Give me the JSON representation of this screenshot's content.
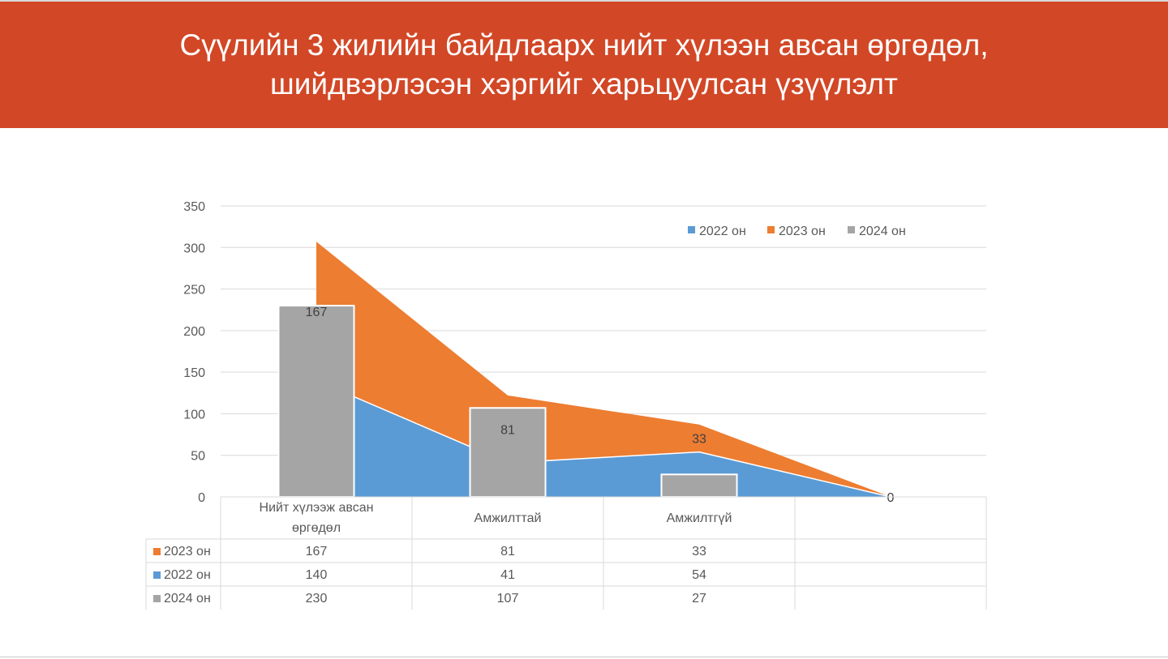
{
  "title": {
    "line1": "Сүүлийн 3 жилийн байдлаарх нийт хүлээн авсан өргөдөл,",
    "line2": "шийдвэрлэсэн хэргийг харьцуулсан үзүүлэлт"
  },
  "chart_data": {
    "type": "area+bar",
    "categories": [
      "Нийт хүлээж авсан өргөдөл",
      "Амжилттай",
      "Амжилтгүй",
      ""
    ],
    "category_lines": [
      [
        "Нийт хүлээж авсан",
        "өргөдөл"
      ],
      [
        "Амжилттай"
      ],
      [
        "Амжилтгүй"
      ],
      [
        ""
      ]
    ],
    "series": [
      {
        "name": "2022 он",
        "kind": "stacked-area",
        "color": "#5B9BD5",
        "values": [
          140,
          41,
          54,
          0
        ]
      },
      {
        "name": "2023 он",
        "kind": "stacked-area",
        "color": "#ED7D31",
        "values": [
          167,
          81,
          33,
          0
        ]
      },
      {
        "name": "2024 он",
        "kind": "bar",
        "color": "#A5A5A5",
        "values": [
          230,
          107,
          27,
          null
        ]
      }
    ],
    "data_labels": [
      "167",
      "81",
      "33",
      "0"
    ],
    "yticks": [
      "0",
      "50",
      "100",
      "150",
      "200",
      "250",
      "300",
      "350"
    ],
    "ylim": [
      0,
      350
    ],
    "grid": true,
    "legend_position": "top-right",
    "table_rows": [
      {
        "name": "2023 он",
        "color": "#ED7D31",
        "cells": [
          "167",
          "81",
          "33",
          ""
        ]
      },
      {
        "name": "2022 он",
        "color": "#5B9BD5",
        "cells": [
          "140",
          "41",
          "54",
          ""
        ]
      },
      {
        "name": "2024 он",
        "color": "#A5A5A5",
        "cells": [
          "230",
          "107",
          "27",
          ""
        ]
      }
    ]
  }
}
